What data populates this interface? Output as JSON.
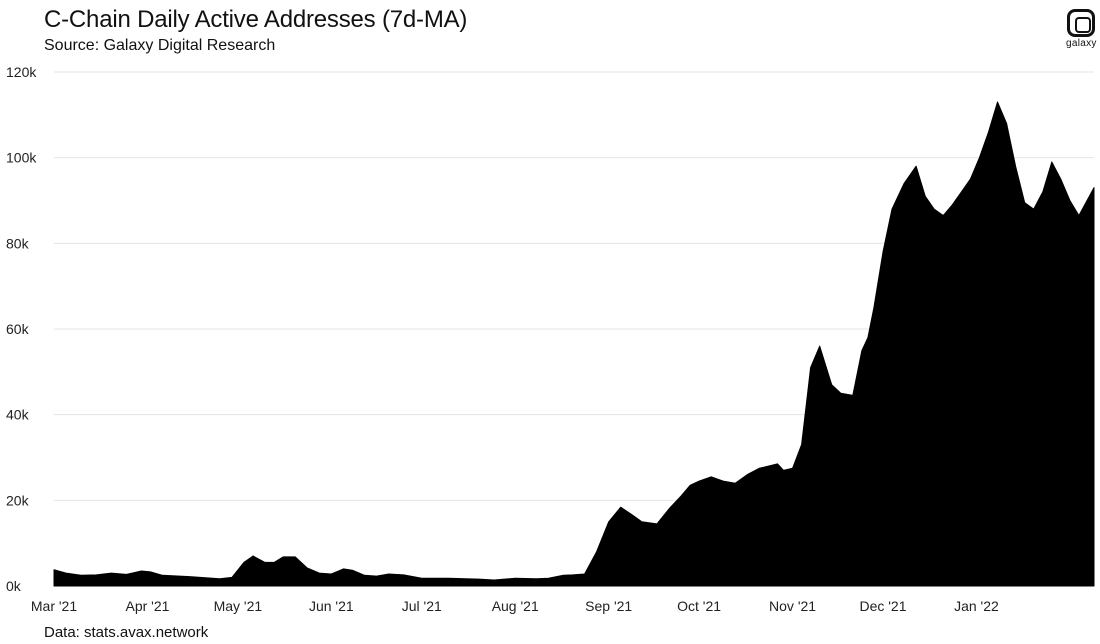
{
  "header": {
    "title": "C-Chain Daily Active Addresses (7d-MA)",
    "subtitle": "Source: Galaxy Digital Research"
  },
  "footer": {
    "data_source": "Data: stats.avax.network"
  },
  "logo": {
    "icon": "galaxy-logo-icon",
    "text": "galaxy"
  },
  "chart_data": {
    "type": "area",
    "title": "C-Chain Daily Active Addresses (7d-MA)",
    "xlabel": "",
    "ylabel": "",
    "ylim": [
      0,
      120000
    ],
    "xlim": [
      "2021-03-01",
      "2022-02-09"
    ],
    "y_ticks": [
      0,
      20000,
      40000,
      60000,
      80000,
      100000,
      120000
    ],
    "y_tick_labels": [
      "0k",
      "20k",
      "40k",
      "60k",
      "80k",
      "100k",
      "120k"
    ],
    "x_ticks": [
      "2021-03-01",
      "2021-04-01",
      "2021-05-01",
      "2021-06-01",
      "2021-07-01",
      "2021-08-01",
      "2021-09-01",
      "2021-10-01",
      "2021-11-01",
      "2021-12-01",
      "2022-01-01"
    ],
    "x_tick_labels": [
      "Mar '21",
      "Apr '21",
      "May '21",
      "Jun '21",
      "Jul '21",
      "Aug '21",
      "Sep '21",
      "Oct '21",
      "Nov '21",
      "Dec '21",
      "Jan '22"
    ],
    "grid": "horizontal",
    "fill_color": "#000000",
    "series": [
      {
        "x": [
          "2021-03-01",
          "2021-03-05",
          "2021-03-10",
          "2021-03-15",
          "2021-03-20",
          "2021-03-25",
          "2021-03-30",
          "2021-04-02",
          "2021-04-06",
          "2021-04-15",
          "2021-04-25",
          "2021-04-29",
          "2021-05-03",
          "2021-05-06",
          "2021-05-10",
          "2021-05-13",
          "2021-05-16",
          "2021-05-20",
          "2021-05-24",
          "2021-05-28",
          "2021-06-01",
          "2021-06-05",
          "2021-06-08",
          "2021-06-12",
          "2021-06-16",
          "2021-06-20",
          "2021-06-25",
          "2021-07-01",
          "2021-07-10",
          "2021-07-20",
          "2021-07-25",
          "2021-08-01",
          "2021-08-08",
          "2021-08-12",
          "2021-08-17",
          "2021-08-20",
          "2021-08-24",
          "2021-08-28",
          "2021-09-01",
          "2021-09-05",
          "2021-09-09",
          "2021-09-12",
          "2021-09-17",
          "2021-09-21",
          "2021-09-25",
          "2021-09-28",
          "2021-10-01",
          "2021-10-05",
          "2021-10-09",
          "2021-10-13",
          "2021-10-17",
          "2021-10-21",
          "2021-10-24",
          "2021-10-27",
          "2021-10-29",
          "2021-11-01",
          "2021-11-04",
          "2021-11-07",
          "2021-11-10",
          "2021-11-14",
          "2021-11-17",
          "2021-11-21",
          "2021-11-24",
          "2021-11-26",
          "2021-11-28",
          "2021-12-01",
          "2021-12-04",
          "2021-12-08",
          "2021-12-12",
          "2021-12-15",
          "2021-12-18",
          "2021-12-21",
          "2021-12-24",
          "2021-12-27",
          "2021-12-30",
          "2022-01-02",
          "2022-01-05",
          "2022-01-08",
          "2022-01-11",
          "2022-01-14",
          "2022-01-17",
          "2022-01-20",
          "2022-01-23",
          "2022-01-26",
          "2022-01-29",
          "2022-02-01",
          "2022-02-04",
          "2022-02-09"
        ],
        "y": [
          3800,
          3000,
          2500,
          2600,
          3000,
          2700,
          3500,
          3300,
          2500,
          2200,
          1700,
          2000,
          5500,
          7000,
          5500,
          5500,
          6800,
          6800,
          4200,
          3000,
          2800,
          4000,
          3700,
          2500,
          2300,
          2800,
          2600,
          1800,
          1800,
          1600,
          1400,
          1800,
          1700,
          1800,
          2500,
          2600,
          2800,
          8000,
          15000,
          18400,
          16500,
          15000,
          14500,
          18000,
          21000,
          23500,
          24500,
          25500,
          24500,
          24000,
          26000,
          27500,
          28000,
          28500,
          27000,
          27500,
          33000,
          51000,
          56000,
          47000,
          45000,
          44500,
          55000,
          58000,
          65000,
          78000,
          88000,
          94000,
          98000,
          91000,
          88000,
          86500,
          89000,
          92000,
          95000,
          100000,
          106000,
          113000,
          108000,
          98000,
          89500,
          88000,
          92000,
          99000,
          95000,
          90000,
          86500,
          93000
        ]
      }
    ]
  }
}
